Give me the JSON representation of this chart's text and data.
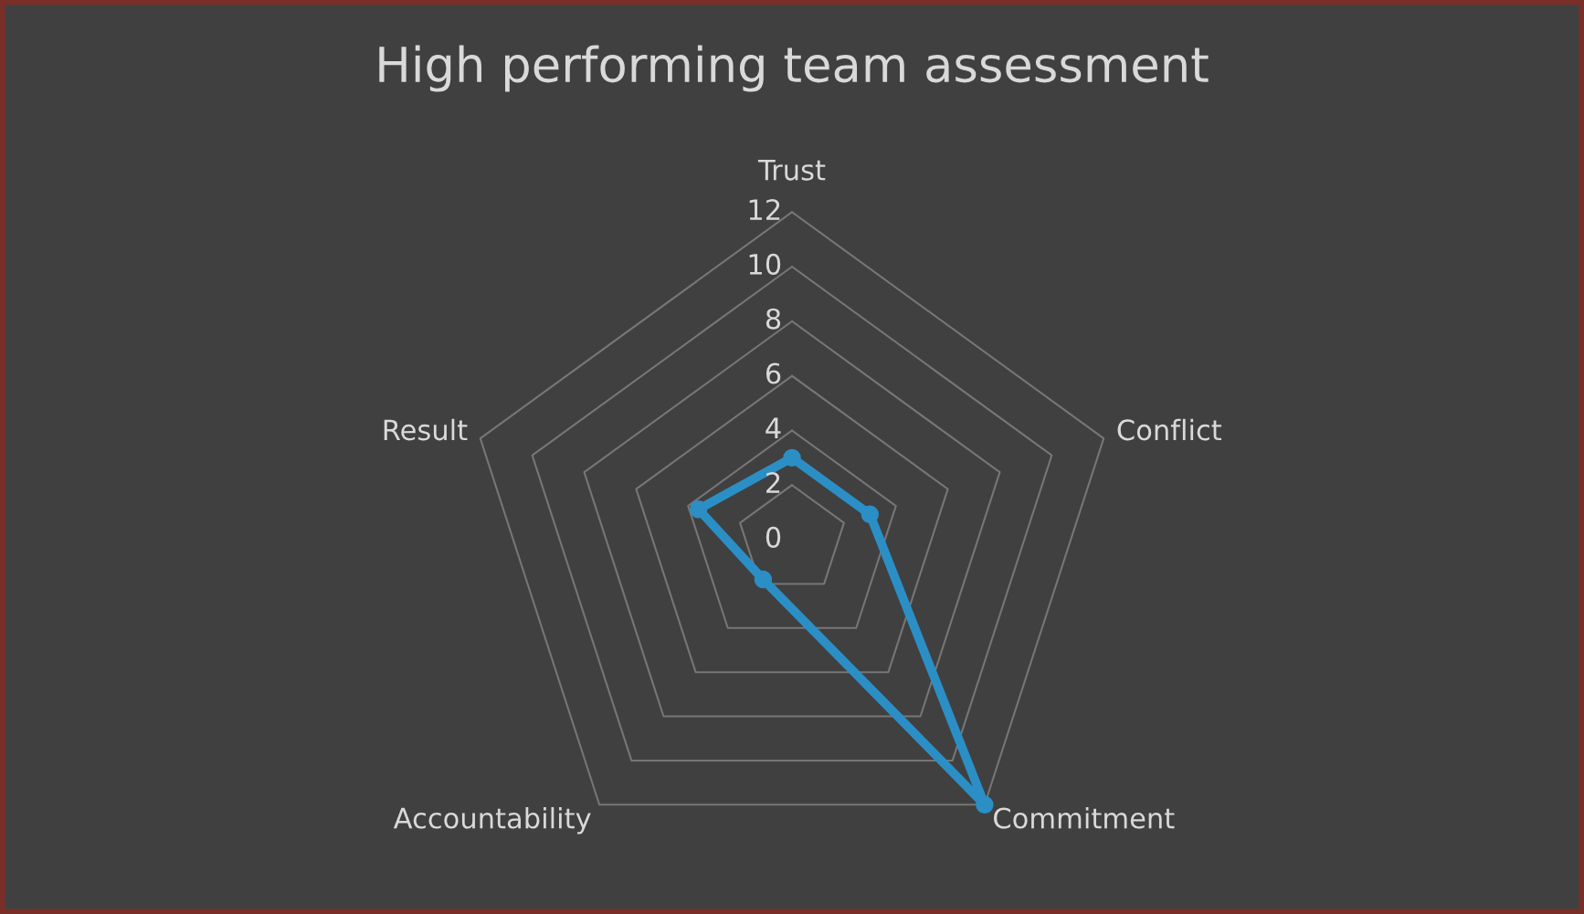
{
  "chart_data": {
    "type": "radar",
    "title": "High performing team assessment",
    "categories": [
      "Trust",
      "Conflict",
      "Commitment",
      "Accountability",
      "Result"
    ],
    "series": [
      {
        "color": "#2b8fc6",
        "values": [
          3,
          3,
          12,
          1.8,
          3.6
        ]
      }
    ],
    "ylim": [
      0,
      12
    ],
    "yticks": [
      0,
      2,
      4,
      6,
      8,
      10,
      12
    ],
    "grid": true,
    "marker": "circle",
    "line_style": "solid"
  }
}
